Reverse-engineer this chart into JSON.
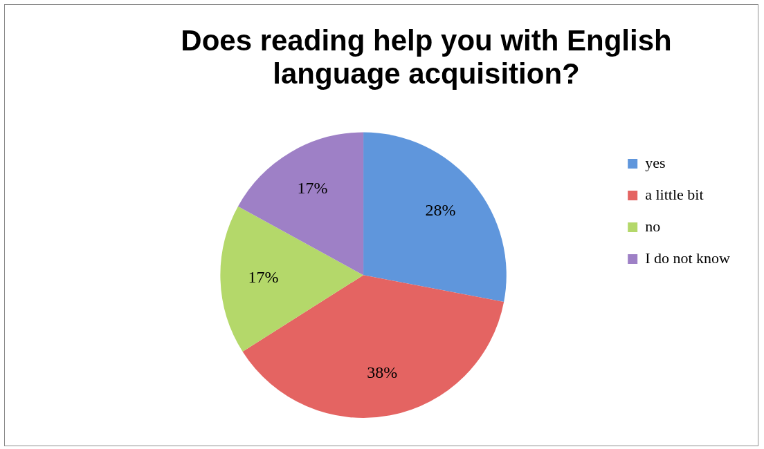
{
  "chart_data": {
    "type": "pie",
    "title": "Does reading help you with English language acquisition?",
    "categories": [
      "yes",
      "a little bit",
      "no",
      "I do not know"
    ],
    "values": [
      28,
      38,
      17,
      17
    ],
    "value_labels": [
      "28%",
      "38%",
      "17%",
      "17%"
    ],
    "colors": [
      "#5f96dc",
      "#e46462",
      "#b4d86a",
      "#9e80c6"
    ],
    "legend": "right"
  }
}
